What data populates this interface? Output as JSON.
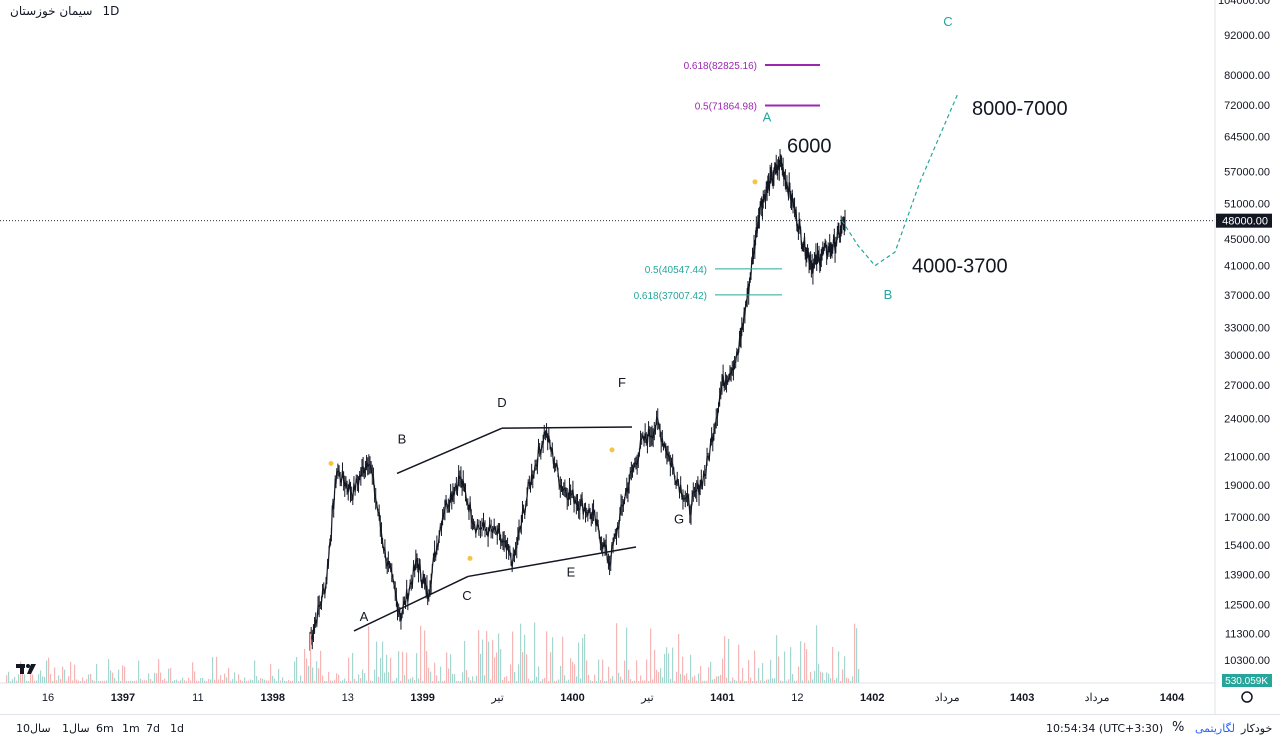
{
  "header": {
    "symbol": "سیمان خوزستان",
    "interval": "1D"
  },
  "chart_data": {
    "type": "candlestick",
    "title": "سیمان خوزستان",
    "interval": "1D",
    "y_scale": "logarithmic",
    "ylim": [
      9500,
      104000
    ],
    "price_ticks": [
      104000,
      92000,
      80000,
      72000,
      64500,
      57000,
      51000,
      45000,
      41000,
      37000,
      33000,
      30000,
      27000,
      24000,
      21000,
      19000,
      17000,
      15400,
      13900,
      12500,
      11300,
      10300
    ],
    "last_price": "48000.00",
    "volume_label": "530.059K",
    "time_ticks": [
      "16",
      "1397",
      "11",
      "1398",
      "13",
      "1399",
      "تیر",
      "1400",
      "تیر",
      "1401",
      "12",
      "1402",
      "مرداد",
      "1403",
      "مرداد",
      "1404"
    ],
    "price_path": [
      {
        "t": 0.0,
        "p": 11000
      },
      {
        "t": 0.03,
        "p": 13500
      },
      {
        "t": 0.05,
        "p": 20000
      },
      {
        "t": 0.08,
        "p": 18500
      },
      {
        "t": 0.11,
        "p": 21000
      },
      {
        "t": 0.14,
        "p": 15000
      },
      {
        "t": 0.17,
        "p": 12000
      },
      {
        "t": 0.2,
        "p": 14500
      },
      {
        "t": 0.22,
        "p": 13000
      },
      {
        "t": 0.25,
        "p": 17500
      },
      {
        "t": 0.28,
        "p": 19500
      },
      {
        "t": 0.31,
        "p": 16500
      },
      {
        "t": 0.35,
        "p": 16000
      },
      {
        "t": 0.38,
        "p": 14500
      },
      {
        "t": 0.41,
        "p": 19000
      },
      {
        "t": 0.44,
        "p": 23000
      },
      {
        "t": 0.47,
        "p": 19000
      },
      {
        "t": 0.5,
        "p": 18000
      },
      {
        "t": 0.53,
        "p": 17000
      },
      {
        "t": 0.56,
        "p": 14500
      },
      {
        "t": 0.59,
        "p": 18500
      },
      {
        "t": 0.62,
        "p": 22000
      },
      {
        "t": 0.65,
        "p": 23500
      },
      {
        "t": 0.68,
        "p": 20000
      },
      {
        "t": 0.71,
        "p": 17500
      },
      {
        "t": 0.74,
        "p": 20000
      },
      {
        "t": 0.77,
        "p": 27000
      },
      {
        "t": 0.8,
        "p": 30000
      },
      {
        "t": 0.82,
        "p": 38000
      },
      {
        "t": 0.84,
        "p": 50000
      },
      {
        "t": 0.86,
        "p": 55000
      },
      {
        "t": 0.88,
        "p": 59000
      },
      {
        "t": 0.9,
        "p": 52000
      },
      {
        "t": 0.92,
        "p": 45000
      },
      {
        "t": 0.94,
        "p": 41000
      },
      {
        "t": 0.96,
        "p": 43000
      },
      {
        "t": 0.98,
        "p": 44000
      },
      {
        "t": 1.0,
        "p": 48000
      }
    ],
    "fib_levels": [
      {
        "label": "0.618(82825.16)",
        "price": 82825.16,
        "color": "#9c27b0"
      },
      {
        "label": "0.5(71864.98)",
        "price": 71864.98,
        "color": "#9c27b0"
      },
      {
        "label": "0.5(40547.44)",
        "price": 40547.44,
        "color": "#26a69a"
      },
      {
        "label": "0.618(37007.42)",
        "price": 37007.42,
        "color": "#26a69a"
      }
    ],
    "wave_labels": [
      {
        "text": "A",
        "price": 11800
      },
      {
        "text": "B",
        "price": 22000
      },
      {
        "text": "C",
        "price": 12700
      },
      {
        "text": "D",
        "price": 25000
      },
      {
        "text": "E",
        "price": 13800
      },
      {
        "text": "F",
        "price": 26800
      },
      {
        "text": "G",
        "price": 16600
      }
    ],
    "projection_labels": [
      {
        "text": "A",
        "price": 68000
      },
      {
        "text": "B",
        "price": 36500
      },
      {
        "text": "C",
        "price": 95000
      }
    ],
    "annotations": [
      {
        "text": "6000",
        "price": 61000
      },
      {
        "text": "8000-7000",
        "price": 69500
      },
      {
        "text": "4000-3700",
        "price": 40000
      }
    ],
    "projection_path": [
      {
        "price": 48000
      },
      {
        "price": 44000
      },
      {
        "price": 41000
      },
      {
        "price": 43000
      },
      {
        "price": 55000
      },
      {
        "price": 75000
      }
    ]
  },
  "bottom_toolbar": {
    "ranges": [
      "10سال",
      "1سال",
      "6m",
      "1m",
      "7d",
      "1d"
    ],
    "clock": "10:54:34 (UTC+3:30)",
    "percent": "%",
    "log": "لگاریتمی",
    "auto": "خودکار"
  },
  "colors": {
    "up": "#26a69a",
    "down": "#ef5350",
    "fib_upper": "#9c27b0",
    "fib_lower": "#26a69a",
    "projection": "#26a69a"
  }
}
